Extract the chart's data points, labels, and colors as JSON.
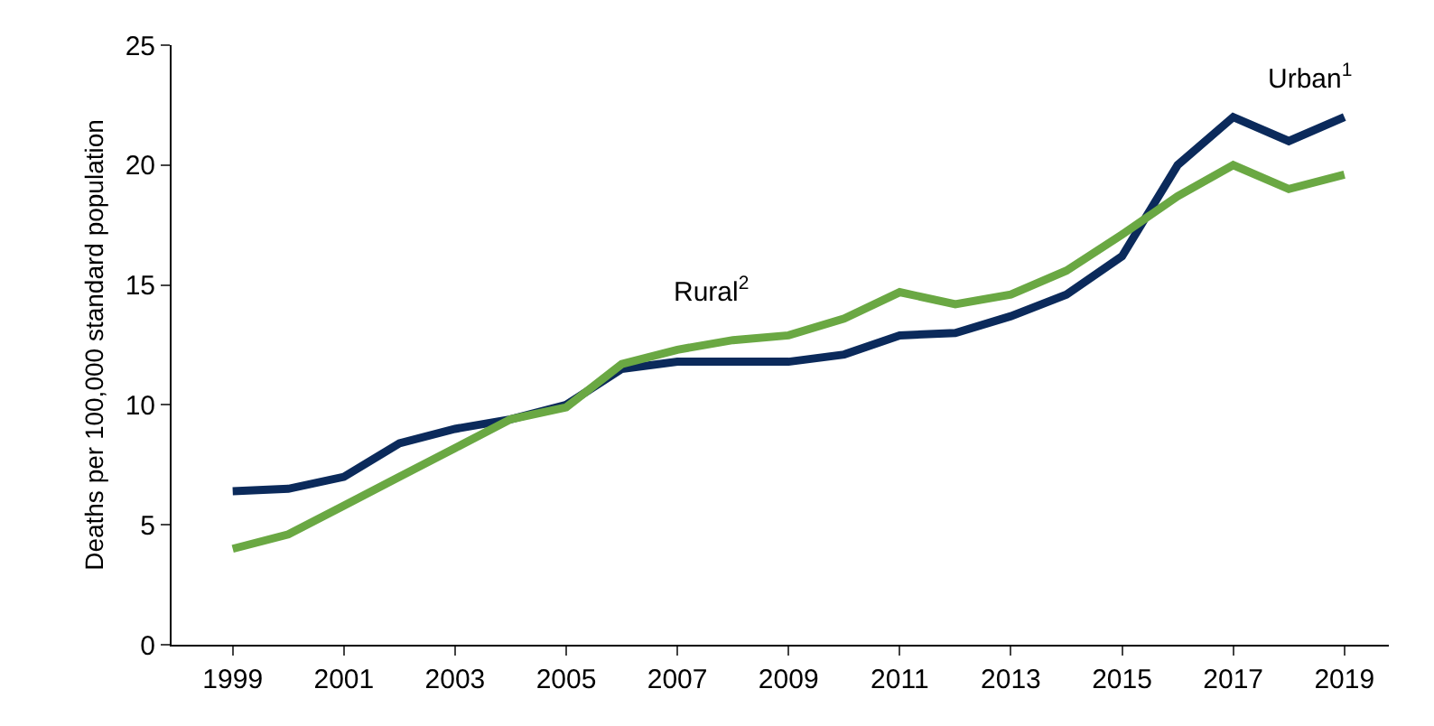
{
  "chart_data": {
    "type": "line",
    "ylabel": "Deaths per 100,000 standard population",
    "x": [
      1999,
      2000,
      2001,
      2002,
      2003,
      2004,
      2005,
      2006,
      2007,
      2008,
      2009,
      2010,
      2011,
      2012,
      2013,
      2014,
      2015,
      2016,
      2017,
      2018,
      2019
    ],
    "series": [
      {
        "name": "Urban$^{1}$",
        "color": "#0b2a5b",
        "values": [
          6.4,
          6.5,
          7.0,
          8.4,
          9.0,
          9.4,
          10.0,
          11.5,
          11.8,
          11.8,
          11.8,
          12.1,
          12.9,
          13.0,
          13.7,
          14.6,
          16.2,
          20.0,
          22.0,
          21.0,
          22.0
        ]
      },
      {
        "name": "Rural$^{2}$",
        "color": "#6aa843",
        "values": [
          4.0,
          4.6,
          5.8,
          7.0,
          8.2,
          9.4,
          9.9,
          11.7,
          12.3,
          12.7,
          12.9,
          13.6,
          14.7,
          14.2,
          14.6,
          15.6,
          17.1,
          18.7,
          20.0,
          19.0,
          19.6
        ]
      }
    ],
    "xlim": [
      1997.9,
      2019.8
    ],
    "xticks": [
      1999,
      2001,
      2003,
      2005,
      2007,
      2009,
      2011,
      2013,
      2015,
      2017,
      2019
    ],
    "ylim": [
      0,
      25
    ],
    "yticks": [
      0,
      5,
      10,
      15,
      20,
      25
    ],
    "grid": false,
    "marker": "none",
    "line_style": "solid"
  }
}
